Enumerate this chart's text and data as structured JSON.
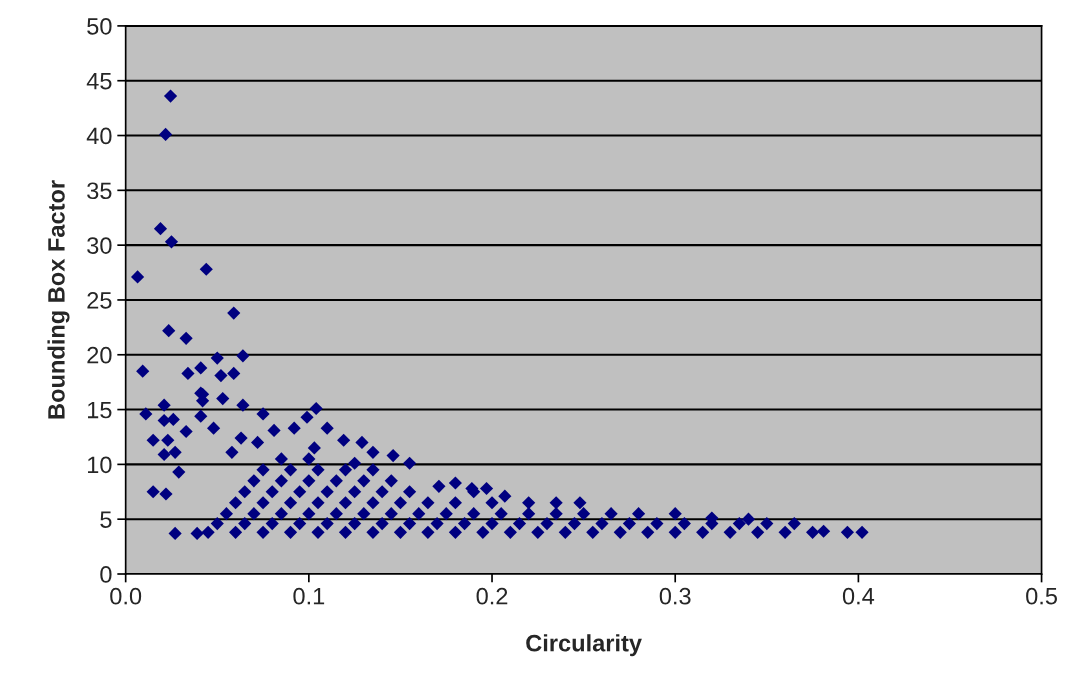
{
  "chart_data": {
    "type": "scatter",
    "xlabel": "Circularity",
    "ylabel": "Bounding Box Factor",
    "xlim": [
      0,
      0.5
    ],
    "ylim": [
      0,
      50
    ],
    "xticks": [
      {
        "value": 0,
        "label": "0.0"
      },
      {
        "value": 0.1,
        "label": "0.1"
      },
      {
        "value": 0.2,
        "label": "0.2"
      },
      {
        "value": 0.3,
        "label": "0.3"
      },
      {
        "value": 0.4,
        "label": "0.4"
      },
      {
        "value": 0.5,
        "label": "0.5"
      }
    ],
    "yticks": [
      0,
      5,
      10,
      15,
      20,
      25,
      30,
      35,
      40,
      45,
      50
    ],
    "grid": "y",
    "marker": "diamond",
    "legend": false,
    "series": [
      {
        "color": "#000080",
        "x": [
          0.0245,
          0.0218,
          0.019,
          0.025,
          0.0065,
          0.044,
          0.059,
          0.0235,
          0.033,
          0.064,
          0.0093,
          0.05,
          0.034,
          0.041,
          0.059,
          0.052,
          0.041,
          0.042,
          0.011,
          0.021,
          0.021,
          0.026,
          0.042,
          0.041,
          0.033,
          0.015,
          0.023,
          0.021,
          0.027,
          0.029,
          0.015,
          0.022,
          0.027,
          0.039,
          0.048,
          0.053,
          0.064,
          0.075,
          0.063,
          0.081,
          0.072,
          0.058,
          0.092,
          0.104,
          0.099,
          0.11,
          0.119,
          0.129,
          0.135,
          0.146,
          0.155,
          0.103,
          0.125,
          0.171,
          0.18,
          0.189,
          0.197,
          0.207,
          0.045,
          0.06,
          0.075,
          0.09,
          0.105,
          0.12,
          0.135,
          0.15,
          0.165,
          0.18,
          0.195,
          0.21,
          0.225,
          0.24,
          0.255,
          0.27,
          0.285,
          0.3,
          0.315,
          0.33,
          0.345,
          0.36,
          0.375,
          0.381,
          0.394,
          0.402,
          0.05,
          0.065,
          0.08,
          0.095,
          0.11,
          0.125,
          0.14,
          0.155,
          0.17,
          0.185,
          0.2,
          0.215,
          0.23,
          0.245,
          0.26,
          0.275,
          0.29,
          0.305,
          0.32,
          0.335,
          0.35,
          0.365,
          0.055,
          0.07,
          0.085,
          0.1,
          0.115,
          0.13,
          0.145,
          0.16,
          0.175,
          0.19,
          0.205,
          0.22,
          0.235,
          0.25,
          0.265,
          0.28,
          0.3,
          0.32,
          0.34,
          0.06,
          0.075,
          0.09,
          0.105,
          0.12,
          0.135,
          0.15,
          0.165,
          0.18,
          0.2,
          0.22,
          0.235,
          0.248,
          0.065,
          0.08,
          0.095,
          0.11,
          0.125,
          0.14,
          0.155,
          0.19,
          0.07,
          0.085,
          0.1,
          0.115,
          0.13,
          0.145,
          0.075,
          0.09,
          0.105,
          0.12,
          0.135,
          0.085,
          0.1
        ],
        "values": [
          43.6,
          40.1,
          31.5,
          30.3,
          27.1,
          27.8,
          23.8,
          22.2,
          21.5,
          19.9,
          18.5,
          19.7,
          18.3,
          18.8,
          18.3,
          18.1,
          16.5,
          15.8,
          14.6,
          15.4,
          14.0,
          14.1,
          16.4,
          14.4,
          13.0,
          12.2,
          12.2,
          10.9,
          11.1,
          9.3,
          7.5,
          7.3,
          3.7,
          3.7,
          13.3,
          16.0,
          15.4,
          14.6,
          12.4,
          13.1,
          12.0,
          11.1,
          13.3,
          15.1,
          14.3,
          13.3,
          12.2,
          12.0,
          11.1,
          10.8,
          10.1,
          11.5,
          10.1,
          8.0,
          8.3,
          7.8,
          7.8,
          7.1,
          3.8,
          3.8,
          3.8,
          3.8,
          3.8,
          3.8,
          3.8,
          3.8,
          3.8,
          3.8,
          3.8,
          3.8,
          3.8,
          3.8,
          3.8,
          3.8,
          3.8,
          3.8,
          3.8,
          3.8,
          3.8,
          3.8,
          3.8,
          3.9,
          3.8,
          3.8,
          4.6,
          4.6,
          4.6,
          4.6,
          4.6,
          4.6,
          4.6,
          4.6,
          4.6,
          4.6,
          4.6,
          4.6,
          4.6,
          4.6,
          4.6,
          4.6,
          4.6,
          4.6,
          4.6,
          4.6,
          4.6,
          4.6,
          5.5,
          5.5,
          5.5,
          5.5,
          5.5,
          5.5,
          5.5,
          5.5,
          5.5,
          5.5,
          5.5,
          5.5,
          5.5,
          5.5,
          5.5,
          5.5,
          5.5,
          5.1,
          5.0,
          6.5,
          6.5,
          6.5,
          6.5,
          6.5,
          6.5,
          6.5,
          6.5,
          6.5,
          6.5,
          6.5,
          6.5,
          6.5,
          7.5,
          7.5,
          7.5,
          7.5,
          7.5,
          7.5,
          7.5,
          7.5,
          8.5,
          8.5,
          8.5,
          8.5,
          8.5,
          8.5,
          9.5,
          9.5,
          9.5,
          9.5,
          9.5,
          10.5,
          10.5
        ]
      }
    ]
  }
}
